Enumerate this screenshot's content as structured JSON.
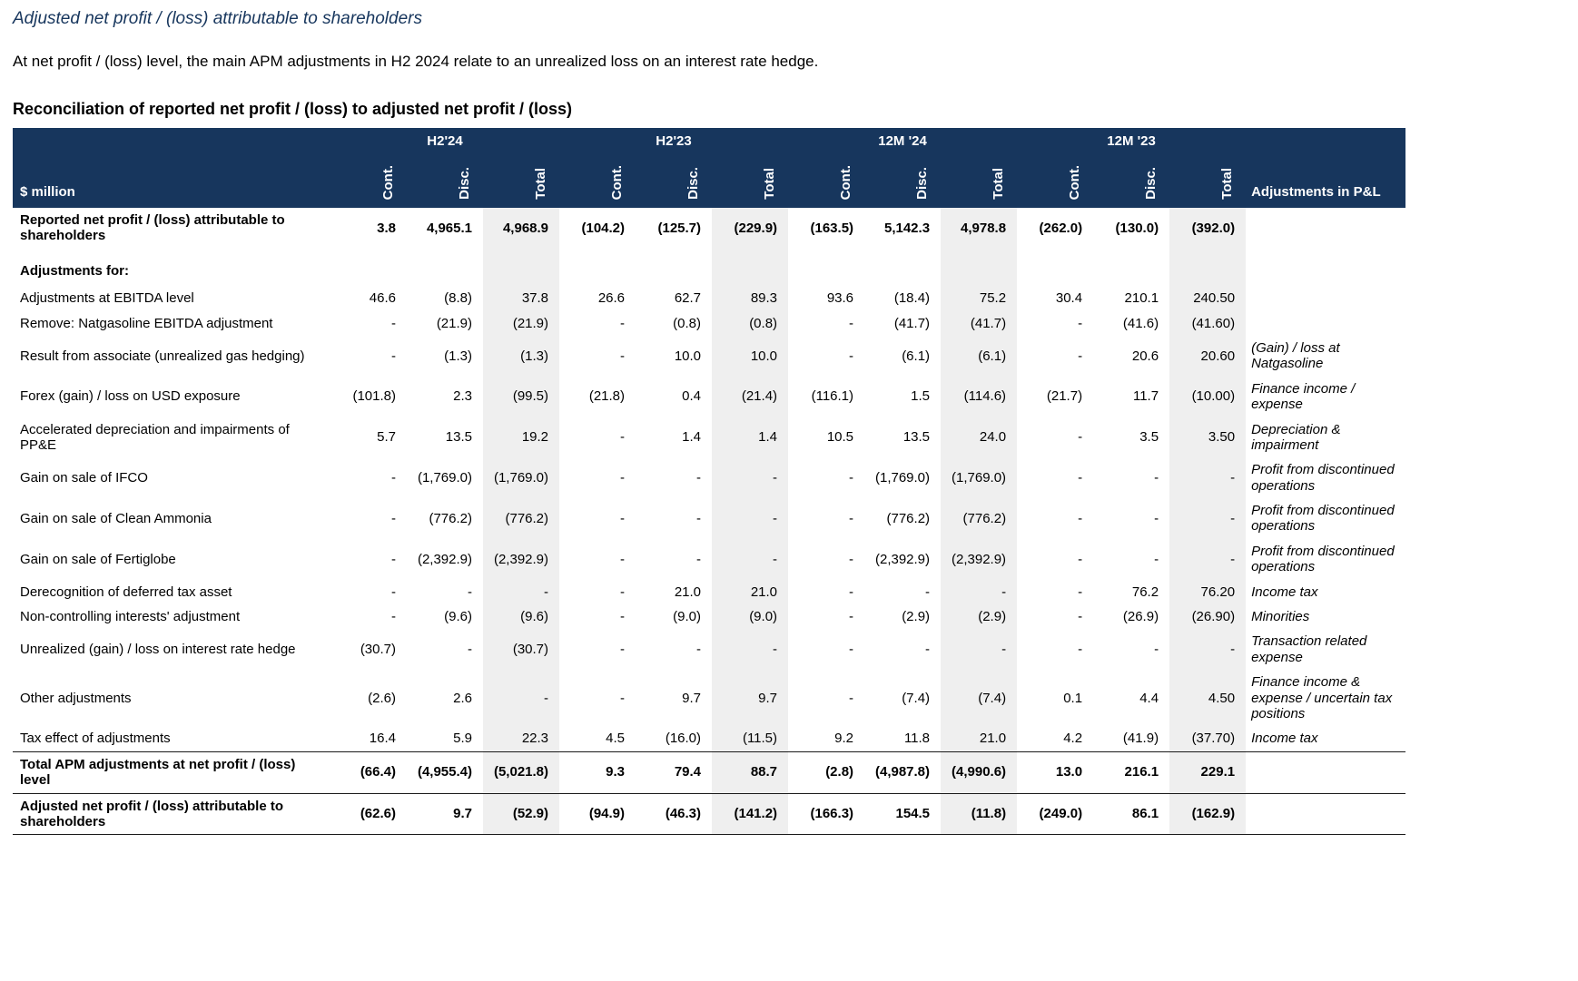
{
  "colors": {
    "header_bg": "#17365d",
    "shade": "#efefef",
    "title_text": "#17365d"
  },
  "page": {
    "title": "Adjusted net profit / (loss) attributable to shareholders",
    "intro": "At net profit / (loss) level, the main APM adjustments in H2 2024 relate to an unrealized loss on an interest rate hedge.",
    "table_title": "Reconciliation of reported net profit / (loss) to adjusted net profit / (loss)"
  },
  "table": {
    "unit_label": "$ million",
    "pnl_header": "Adjustments in P&L",
    "groups": [
      "H2'24",
      "H2'23",
      "12M '24",
      "12M '23"
    ],
    "subheaders": [
      "Cont.",
      "Disc.",
      "Total"
    ],
    "rows": [
      {
        "style": "bold",
        "label": "Reported net profit / (loss) attributable to shareholders",
        "values": [
          "3.8",
          "4,965.1",
          "4,968.9",
          "(104.2)",
          "(125.7)",
          "(229.9)",
          "(163.5)",
          "5,142.3",
          "4,978.8",
          "(262.0)",
          "(130.0)",
          "(392.0)"
        ],
        "pnl": ""
      },
      {
        "style": "section",
        "label": "Adjustments for:",
        "values": [
          "",
          "",
          "",
          "",
          "",
          "",
          "",
          "",
          "",
          "",
          "",
          ""
        ],
        "pnl": ""
      },
      {
        "style": "normal",
        "label": "Adjustments at EBITDA level",
        "values": [
          "46.6",
          "(8.8)",
          "37.8",
          "26.6",
          "62.7",
          "89.3",
          "93.6",
          "(18.4)",
          "75.2",
          "30.4",
          "210.1",
          "240.50"
        ],
        "pnl": ""
      },
      {
        "style": "normal",
        "label": "Remove: Natgasoline EBITDA adjustment",
        "values": [
          "-",
          "(21.9)",
          "(21.9)",
          "-",
          "(0.8)",
          "(0.8)",
          "-",
          "(41.7)",
          "(41.7)",
          "-",
          "(41.6)",
          "(41.60)"
        ],
        "pnl": ""
      },
      {
        "style": "normal",
        "label": "Result from associate (unrealized gas hedging)",
        "values": [
          "-",
          "(1.3)",
          "(1.3)",
          "-",
          "10.0",
          "10.0",
          "-",
          "(6.1)",
          "(6.1)",
          "-",
          "20.6",
          "20.60"
        ],
        "pnl": "(Gain) / loss at Natgasoline"
      },
      {
        "style": "normal",
        "label": "Forex (gain) / loss on USD exposure",
        "values": [
          "(101.8)",
          "2.3",
          "(99.5)",
          "(21.8)",
          "0.4",
          "(21.4)",
          "(116.1)",
          "1.5",
          "(114.6)",
          "(21.7)",
          "11.7",
          "(10.00)"
        ],
        "pnl": "Finance income / expense"
      },
      {
        "style": "normal",
        "label": "Accelerated depreciation and impairments of PP&E",
        "values": [
          "5.7",
          "13.5",
          "19.2",
          "-",
          "1.4",
          "1.4",
          "10.5",
          "13.5",
          "24.0",
          "-",
          "3.5",
          "3.50"
        ],
        "pnl": "Depreciation & impairment"
      },
      {
        "style": "normal",
        "label": "Gain on sale of IFCO",
        "values": [
          "-",
          "(1,769.0)",
          "(1,769.0)",
          "-",
          "-",
          "-",
          "-",
          "(1,769.0)",
          "(1,769.0)",
          "-",
          "-",
          "-"
        ],
        "pnl": "Profit from discontinued operations"
      },
      {
        "style": "normal",
        "label": "Gain on sale of Clean Ammonia",
        "values": [
          "-",
          "(776.2)",
          "(776.2)",
          "-",
          "-",
          "-",
          "-",
          "(776.2)",
          "(776.2)",
          "-",
          "-",
          "-"
        ],
        "pnl": "Profit from discontinued operations"
      },
      {
        "style": "normal",
        "label": "Gain on sale of Fertiglobe",
        "values": [
          "-",
          "(2,392.9)",
          "(2,392.9)",
          "-",
          "-",
          "-",
          "-",
          "(2,392.9)",
          "(2,392.9)",
          "-",
          "-",
          "-"
        ],
        "pnl": "Profit from discontinued operations"
      },
      {
        "style": "normal",
        "label": "Derecognition of deferred tax asset",
        "values": [
          "-",
          "-",
          "-",
          "-",
          "21.0",
          "21.0",
          "-",
          "-",
          "-",
          "-",
          "76.2",
          "76.20"
        ],
        "pnl": "Income tax"
      },
      {
        "style": "normal",
        "label": "Non-controlling interests' adjustment",
        "values": [
          "-",
          "(9.6)",
          "(9.6)",
          "-",
          "(9.0)",
          "(9.0)",
          "-",
          "(2.9)",
          "(2.9)",
          "-",
          "(26.9)",
          "(26.90)"
        ],
        "pnl": "Minorities"
      },
      {
        "style": "normal",
        "label": "Unrealized (gain) / loss on interest rate hedge",
        "values": [
          "(30.7)",
          "-",
          "(30.7)",
          "-",
          "-",
          "-",
          "-",
          "-",
          "-",
          "-",
          "-",
          "-"
        ],
        "pnl": "Transaction related expense"
      },
      {
        "style": "normal",
        "label": "Other adjustments",
        "values": [
          "(2.6)",
          "2.6",
          "-",
          "-",
          "9.7",
          "9.7",
          "-",
          "(7.4)",
          "(7.4)",
          "0.1",
          "4.4",
          "4.50"
        ],
        "pnl": "Finance income & expense / uncertain tax positions"
      },
      {
        "style": "normal",
        "label": "Tax effect of adjustments",
        "values": [
          "16.4",
          "5.9",
          "22.3",
          "4.5",
          "(16.0)",
          "(11.5)",
          "9.2",
          "11.8",
          "21.0",
          "4.2",
          "(41.9)",
          "(37.70)"
        ],
        "pnl": "Income tax"
      },
      {
        "style": "total",
        "label": "Total APM adjustments at net profit / (loss) level",
        "values": [
          "(66.4)",
          "(4,955.4)",
          "(5,021.8)",
          "9.3",
          "79.4",
          "88.7",
          "(2.8)",
          "(4,987.8)",
          "(4,990.6)",
          "13.0",
          "216.1",
          "229.1"
        ],
        "pnl": ""
      },
      {
        "style": "total-final",
        "label": "Adjusted net profit / (loss) attributable to shareholders",
        "values": [
          "(62.6)",
          "9.7",
          "(52.9)",
          "(94.9)",
          "(46.3)",
          "(141.2)",
          "(166.3)",
          "154.5",
          "(11.8)",
          "(249.0)",
          "86.1",
          "(162.9)"
        ],
        "pnl": ""
      }
    ]
  }
}
